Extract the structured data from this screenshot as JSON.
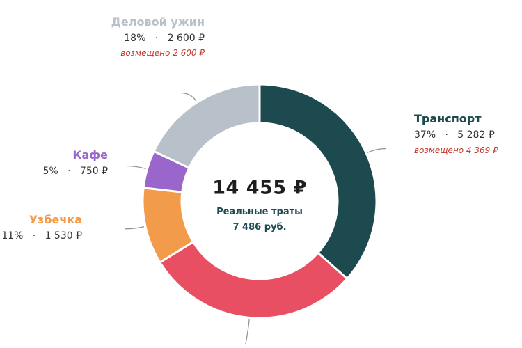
{
  "chart_data": {
    "type": "donut",
    "total_label": "14 455 ₽",
    "subtitle_line1": "Реальные траты",
    "subtitle_line2": "7 486 руб.",
    "slices": [
      {
        "name": "Транспорт",
        "value": 5282,
        "percent_label": "37%",
        "amount_label": "5 282 ₽",
        "reimbursed_label": "возмещено 4 369 ₽",
        "color": "#1d4a4e",
        "label_color": "#1d4a4e"
      },
      {
        "name": "",
        "value": 4293,
        "percent_label": "",
        "amount_label": "",
        "reimbursed_label": "",
        "color": "#e84f62",
        "label_color": "#e84f62"
      },
      {
        "name": "Узбечка",
        "value": 1530,
        "percent_label": "11%",
        "amount_label": "1 530 ₽",
        "reimbursed_label": "",
        "color": "#f29b4a",
        "label_color": "#f29b4a"
      },
      {
        "name": "Кафе",
        "value": 750,
        "percent_label": "5%",
        "amount_label": "750 ₽",
        "reimbursed_label": "",
        "color": "#9b66cc",
        "label_color": "#9b66cc"
      },
      {
        "name": "Деловой ужин",
        "value": 2600,
        "percent_label": "18%",
        "amount_label": "2 600 ₽",
        "reimbursed_label": "возмещено 2 600 ₽",
        "color": "#b8c1c9",
        "label_color": "#b8c1c9"
      }
    ]
  }
}
